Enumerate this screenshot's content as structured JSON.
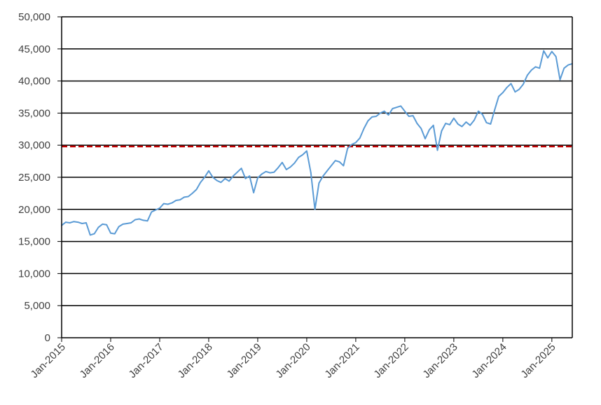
{
  "chart_data": {
    "type": "line",
    "title": "",
    "xlabel": "",
    "ylabel": "",
    "grid": "horizontal",
    "legend": "none",
    "x_ticks": [
      "Jan-2015",
      "Jan-2016",
      "Jan-2017",
      "Jan-2018",
      "Jan-2019",
      "Jan-2020",
      "Jan-2021",
      "Jan-2022",
      "Jan-2023",
      "Jan-2024",
      "Jan-2025"
    ],
    "y_ticks": [
      "0",
      "5,000",
      "10,000",
      "15,000",
      "20,000",
      "25,000",
      "30,000",
      "35,000",
      "40,000",
      "45,000",
      "50,000"
    ],
    "xlim": [
      "2015-01",
      "2025-06"
    ],
    "ylim": [
      0,
      50000
    ],
    "reference_line": {
      "value": 29800,
      "color": "#c00000",
      "style": "dashed"
    },
    "series": [
      {
        "color": "#5b9bd5",
        "x": [
          "2015-01",
          "2015-02",
          "2015-03",
          "2015-04",
          "2015-05",
          "2015-06",
          "2015-07",
          "2015-08",
          "2015-09",
          "2015-10",
          "2015-11",
          "2015-12",
          "2016-01",
          "2016-02",
          "2016-03",
          "2016-04",
          "2016-05",
          "2016-06",
          "2016-07",
          "2016-08",
          "2016-09",
          "2016-10",
          "2016-11",
          "2016-12",
          "2017-01",
          "2017-02",
          "2017-03",
          "2017-04",
          "2017-05",
          "2017-06",
          "2017-07",
          "2017-08",
          "2017-09",
          "2017-10",
          "2017-11",
          "2017-12",
          "2018-01",
          "2018-02",
          "2018-03",
          "2018-04",
          "2018-05",
          "2018-06",
          "2018-07",
          "2018-08",
          "2018-09",
          "2018-10",
          "2018-11",
          "2018-12",
          "2019-01",
          "2019-02",
          "2019-03",
          "2019-04",
          "2019-05",
          "2019-06",
          "2019-07",
          "2019-08",
          "2019-09",
          "2019-10",
          "2019-11",
          "2019-12",
          "2020-01",
          "2020-02",
          "2020-03",
          "2020-04",
          "2020-05",
          "2020-06",
          "2020-07",
          "2020-08",
          "2020-09",
          "2020-10",
          "2020-11",
          "2020-12",
          "2021-01",
          "2021-02",
          "2021-03",
          "2021-04",
          "2021-05",
          "2021-06",
          "2021-07",
          "2021-08",
          "2021-09",
          "2021-10",
          "2021-11",
          "2021-12",
          "2022-01",
          "2022-02",
          "2022-03",
          "2022-04",
          "2022-05",
          "2022-06",
          "2022-07",
          "2022-08",
          "2022-09",
          "2022-10",
          "2022-11",
          "2022-12",
          "2023-01",
          "2023-02",
          "2023-03",
          "2023-04",
          "2023-05",
          "2023-06",
          "2023-07",
          "2023-08",
          "2023-09",
          "2023-10",
          "2023-11",
          "2023-12",
          "2024-01",
          "2024-02",
          "2024-03",
          "2024-04",
          "2024-05",
          "2024-06",
          "2024-07",
          "2024-08",
          "2024-09",
          "2024-10",
          "2024-11",
          "2024-12",
          "2025-01",
          "2025-02",
          "2025-03",
          "2025-04",
          "2025-05",
          "2025-06"
        ],
        "values": [
          17500,
          18000,
          17900,
          18100,
          18000,
          17800,
          17900,
          16000,
          16200,
          17200,
          17700,
          17600,
          16300,
          16200,
          17300,
          17700,
          17800,
          17900,
          18400,
          18500,
          18300,
          18200,
          19600,
          19900,
          20200,
          20900,
          20800,
          21000,
          21400,
          21500,
          21900,
          22000,
          22500,
          23100,
          24200,
          25000,
          26000,
          25000,
          24500,
          24200,
          24800,
          24400,
          25200,
          25800,
          26400,
          24800,
          25200,
          22600,
          24900,
          25500,
          25900,
          25700,
          25800,
          26500,
          27300,
          26200,
          26600,
          27200,
          28100,
          28500,
          29100,
          25700,
          20000,
          24100,
          25200,
          26000,
          26800,
          27600,
          27400,
          26800,
          29500,
          30100,
          30400,
          31100,
          32600,
          33800,
          34400,
          34500,
          35000,
          35300,
          34700,
          35700,
          35900,
          36100,
          35300,
          34500,
          34600,
          33400,
          32600,
          31000,
          32400,
          33100,
          29200,
          32200,
          33400,
          33200,
          34200,
          33300,
          32900,
          33600,
          33100,
          33900,
          35300,
          34800,
          33500,
          33300,
          35500,
          37600,
          38200,
          39000,
          39600,
          38300,
          38700,
          39500,
          40900,
          41700,
          42200,
          42000,
          44700,
          43600,
          44600,
          43800,
          40200,
          42000,
          42500,
          42700
        ]
      }
    ]
  }
}
